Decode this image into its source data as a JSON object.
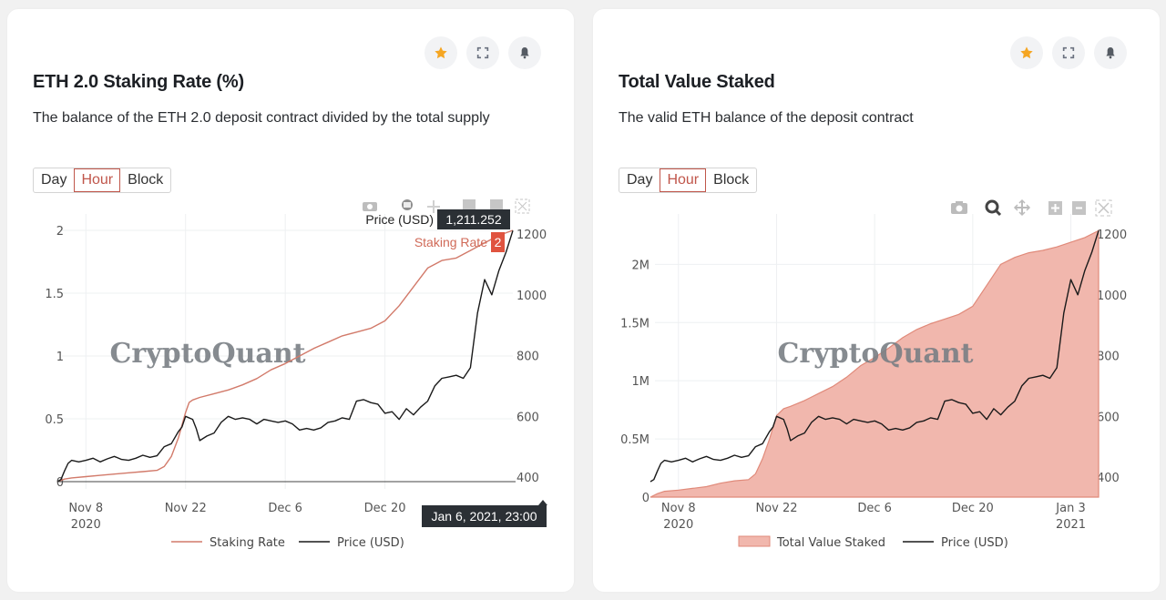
{
  "colors": {
    "staking_line": "#d27a6a",
    "price_line": "#1a1a1a",
    "area_fill": "#f1b7ad",
    "area_line": "#e08a7a",
    "accent": "#c0564b",
    "star": "#f5a623",
    "tooltip_dark": "#2b3035",
    "tooltip_red": "#e0533f"
  },
  "cards": [
    {
      "title": "ETH 2.0 Staking Rate (%)",
      "description": "The balance of the ETH 2.0 deposit contract divided by the total supply",
      "header_icons": [
        "star-icon",
        "expand-icon",
        "bell-icon"
      ],
      "interval_options": [
        "Day",
        "Hour",
        "Block"
      ],
      "selected_interval": "Hour",
      "watermark": "CryptoQuant",
      "modebar_icons": [
        "camera-icon",
        "zoom-icon",
        "pan-icon",
        "zoom-in-icon",
        "zoom-out-icon",
        "autoscale-icon"
      ],
      "tooltips": {
        "price_label": "Price (USD)",
        "price_value": "1,211.252",
        "staking_label": "Staking Rate",
        "staking_value": "2",
        "x_value": "Jan 6, 2021, 23:00"
      }
    },
    {
      "title": "Total Value Staked",
      "description": "The valid ETH balance of the deposit contract",
      "header_icons": [
        "star-icon",
        "expand-icon",
        "bell-icon"
      ],
      "interval_options": [
        "Day",
        "Hour",
        "Block"
      ],
      "selected_interval": "Hour",
      "watermark": "CryptoQuant",
      "modebar_icons": [
        "camera-icon",
        "zoom-icon",
        "pan-icon",
        "zoom-in-icon",
        "zoom-out-icon",
        "autoscale-icon"
      ]
    }
  ],
  "chart_data": [
    {
      "type": "line",
      "title": "ETH 2.0 Staking Rate (%)",
      "x_ticks": [
        {
          "label": "Nov 8",
          "sub": "2020",
          "day": 4
        },
        {
          "label": "Nov 22",
          "sub": "",
          "day": 18
        },
        {
          "label": "Dec 6",
          "sub": "",
          "day": 32
        },
        {
          "label": "Dec 20",
          "sub": "",
          "day": 46
        }
      ],
      "x_unit": "days since Nov 4, 2020",
      "xlim": [
        0,
        63.96
      ],
      "y_left": {
        "ticks": [
          "0",
          "0.5",
          "1",
          "1.5",
          "2"
        ],
        "tick_values": [
          0,
          0.5,
          1,
          1.5,
          2
        ],
        "lim": [
          0,
          2
        ]
      },
      "y_right": {
        "ticks": [
          "400",
          "600",
          "800",
          "1000",
          "1200"
        ],
        "tick_values": [
          400,
          600,
          800,
          1000,
          1200
        ],
        "lim": [
          400,
          1200
        ]
      },
      "legend": [
        "Staking Rate",
        "Price (USD)"
      ],
      "legend_position": "bottom-center",
      "series": [
        {
          "name": "Staking Rate",
          "axis": "left",
          "x": [
            0,
            1,
            2,
            4,
            6,
            8,
            10,
            12,
            14,
            15,
            16,
            17,
            18,
            18.5,
            19,
            20,
            22,
            24,
            26,
            28,
            30,
            32,
            34,
            36,
            38,
            40,
            42,
            44,
            46,
            48,
            50,
            52,
            54,
            56,
            58,
            60,
            62,
            63.96
          ],
          "values": [
            0.0,
            0.02,
            0.03,
            0.04,
            0.05,
            0.06,
            0.07,
            0.08,
            0.09,
            0.12,
            0.2,
            0.35,
            0.55,
            0.63,
            0.65,
            0.67,
            0.7,
            0.73,
            0.77,
            0.82,
            0.89,
            0.94,
            1.0,
            1.06,
            1.11,
            1.16,
            1.19,
            1.22,
            1.28,
            1.4,
            1.55,
            1.7,
            1.76,
            1.78,
            1.84,
            1.9,
            1.96,
            2.0
          ]
        },
        {
          "name": "Price (USD)",
          "axis": "right",
          "x": [
            0,
            0.5,
            1,
            1.5,
            2,
            3,
            4,
            5,
            6,
            7,
            8,
            9,
            10,
            11,
            12,
            13,
            14,
            15,
            16,
            17,
            17.5,
            18,
            19,
            19.5,
            20,
            21,
            22,
            23,
            24,
            25,
            26,
            27,
            28,
            29,
            30,
            31,
            32,
            33,
            34,
            35,
            36,
            37,
            38,
            39,
            40,
            41,
            42,
            43,
            44,
            45,
            46,
            47,
            48,
            49,
            50,
            51,
            52,
            53,
            54,
            55,
            56,
            57,
            58,
            59,
            60,
            61,
            62,
            63,
            63.96
          ],
          "values": [
            385,
            392,
            420,
            445,
            455,
            450,
            455,
            462,
            450,
            460,
            468,
            458,
            455,
            462,
            472,
            465,
            470,
            500,
            510,
            550,
            565,
            600,
            590,
            560,
            520,
            535,
            545,
            580,
            600,
            590,
            595,
            590,
            575,
            590,
            585,
            580,
            585,
            575,
            555,
            560,
            555,
            562,
            580,
            585,
            595,
            590,
            650,
            655,
            645,
            640,
            610,
            615,
            590,
            625,
            605,
            630,
            650,
            700,
            725,
            730,
            735,
            725,
            760,
            940,
            1050,
            1000,
            1080,
            1140,
            1211
          ]
        }
      ]
    },
    {
      "type": "area",
      "title": "Total Value Staked",
      "x_ticks": [
        {
          "label": "Nov 8",
          "sub": "2020",
          "day": 4
        },
        {
          "label": "Nov 22",
          "sub": "",
          "day": 18
        },
        {
          "label": "Dec 6",
          "sub": "",
          "day": 32
        },
        {
          "label": "Dec 20",
          "sub": "",
          "day": 46
        },
        {
          "label": "Jan 3",
          "sub": "2021",
          "day": 60
        }
      ],
      "x_unit": "days since Nov 4, 2020",
      "xlim": [
        0,
        63.96
      ],
      "y_left": {
        "ticks": [
          "0",
          "0.5M",
          "1M",
          "1.5M",
          "2M"
        ],
        "tick_values": [
          0,
          500000,
          1000000,
          1500000,
          2000000
        ],
        "lim": [
          0,
          2300000
        ]
      },
      "y_right": {
        "ticks": [
          "400",
          "600",
          "800",
          "1000",
          "1200"
        ],
        "tick_values": [
          400,
          600,
          800,
          1000,
          1200
        ],
        "lim": [
          400,
          1200
        ]
      },
      "legend": [
        "Total Value Staked",
        "Price (USD)"
      ],
      "legend_position": "bottom-center",
      "series": [
        {
          "name": "Total Value Staked",
          "axis": "left",
          "x": [
            0,
            1,
            2,
            4,
            6,
            8,
            10,
            12,
            14,
            15,
            16,
            17,
            18,
            18.5,
            19,
            20,
            22,
            24,
            26,
            28,
            30,
            32,
            34,
            36,
            38,
            40,
            42,
            44,
            46,
            48,
            50,
            52,
            54,
            56,
            58,
            60,
            62,
            63.96
          ],
          "values": [
            0,
            30000,
            50000,
            60000,
            75000,
            90000,
            120000,
            140000,
            150000,
            200000,
            330000,
            500000,
            700000,
            730000,
            760000,
            780000,
            830000,
            890000,
            950000,
            1030000,
            1130000,
            1200000,
            1280000,
            1370000,
            1440000,
            1490000,
            1530000,
            1570000,
            1640000,
            1820000,
            2000000,
            2060000,
            2100000,
            2120000,
            2150000,
            2190000,
            2230000,
            2290000
          ]
        },
        {
          "name": "Price (USD)",
          "axis": "right",
          "x": [
            0,
            0.5,
            1,
            1.5,
            2,
            3,
            4,
            5,
            6,
            7,
            8,
            9,
            10,
            11,
            12,
            13,
            14,
            15,
            16,
            17,
            17.5,
            18,
            19,
            19.5,
            20,
            21,
            22,
            23,
            24,
            25,
            26,
            27,
            28,
            29,
            30,
            31,
            32,
            33,
            34,
            35,
            36,
            37,
            38,
            39,
            40,
            41,
            42,
            43,
            44,
            45,
            46,
            47,
            48,
            49,
            50,
            51,
            52,
            53,
            54,
            55,
            56,
            57,
            58,
            59,
            60,
            61,
            62,
            63,
            63.96
          ],
          "values": [
            385,
            392,
            420,
            445,
            455,
            450,
            455,
            462,
            450,
            460,
            468,
            458,
            455,
            462,
            472,
            465,
            470,
            500,
            510,
            550,
            565,
            600,
            590,
            560,
            520,
            535,
            545,
            580,
            600,
            590,
            595,
            590,
            575,
            590,
            585,
            580,
            585,
            575,
            555,
            560,
            555,
            562,
            580,
            585,
            595,
            590,
            650,
            655,
            645,
            640,
            610,
            615,
            590,
            625,
            605,
            630,
            650,
            700,
            725,
            730,
            735,
            725,
            760,
            940,
            1050,
            1000,
            1080,
            1140,
            1211
          ]
        }
      ]
    }
  ]
}
